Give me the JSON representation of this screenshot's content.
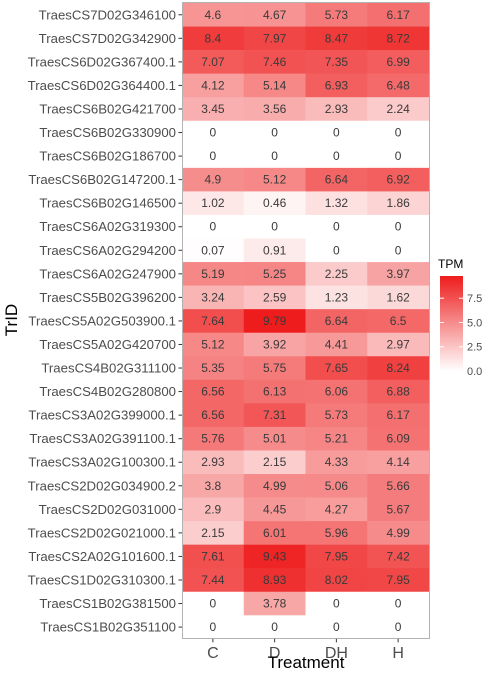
{
  "chart_data": {
    "type": "heatmap",
    "xlabel": "Treatment",
    "ylabel": "TrID",
    "x": [
      "C",
      "D",
      "DH",
      "H"
    ],
    "y": [
      "TraesCS7D02G346100",
      "TraesCS7D02G342900",
      "TraesCS6D02G367400.1",
      "TraesCS6D02G364400.1",
      "TraesCS6B02G421700",
      "TraesCS6B02G330900",
      "TraesCS6B02G186700",
      "TraesCS6B02G147200.1",
      "TraesCS6B02G146500",
      "TraesCS6A02G319300",
      "TraesCS6A02G294200",
      "TraesCS6A02G247900",
      "TraesCS5B02G396200",
      "TraesCS5A02G503900.1",
      "TraesCS5A02G420700",
      "TraesCS4B02G311100",
      "TraesCS4B02G280800",
      "TraesCS3A02G399000.1",
      "TraesCS3A02G391100.1",
      "TraesCS3A02G100300.1",
      "TraesCS2D02G034900.2",
      "TraesCS2D02G031000",
      "TraesCS2D02G021000.1",
      "TraesCS2A02G101600.1",
      "TraesCS1D02G310300.1",
      "TraesCS1B02G381500",
      "TraesCS1B02G351100"
    ],
    "values": [
      [
        4.6,
        4.67,
        5.73,
        6.17
      ],
      [
        8.4,
        7.97,
        8.47,
        8.72
      ],
      [
        7.07,
        7.46,
        7.35,
        6.99
      ],
      [
        4.12,
        5.14,
        6.93,
        6.48
      ],
      [
        3.45,
        3.56,
        2.93,
        2.24
      ],
      [
        0,
        0,
        0,
        0
      ],
      [
        0,
        0,
        0,
        0
      ],
      [
        4.9,
        5.12,
        6.64,
        6.92
      ],
      [
        1.02,
        0.46,
        1.32,
        1.86
      ],
      [
        0,
        0,
        0,
        0
      ],
      [
        0.07,
        0.91,
        0,
        0
      ],
      [
        5.19,
        5.25,
        2.25,
        3.97
      ],
      [
        3.24,
        2.59,
        1.23,
        1.62
      ],
      [
        7.64,
        9.79,
        6.64,
        6.5
      ],
      [
        5.12,
        3.92,
        4.41,
        2.97
      ],
      [
        5.35,
        5.75,
        7.65,
        8.24
      ],
      [
        6.56,
        6.13,
        6.06,
        6.88
      ],
      [
        6.56,
        7.31,
        5.73,
        6.17
      ],
      [
        5.76,
        5.01,
        5.21,
        6.09
      ],
      [
        2.93,
        2.15,
        4.33,
        4.14
      ],
      [
        3.8,
        4.99,
        5.06,
        5.66
      ],
      [
        2.9,
        4.45,
        4.27,
        5.67
      ],
      [
        2.15,
        6.01,
        5.96,
        4.99
      ],
      [
        7.61,
        9.43,
        7.95,
        7.42
      ],
      [
        7.44,
        8.93,
        8.02,
        7.95
      ],
      [
        0,
        3.78,
        0,
        0
      ],
      [
        0,
        0,
        0,
        0
      ]
    ],
    "cell_labels": [
      [
        "4.6",
        "4.67",
        "5.73",
        "6.17"
      ],
      [
        "8.4",
        "7.97",
        "8.47",
        "8.72"
      ],
      [
        "7.07",
        "7.46",
        "7.35",
        "6.99"
      ],
      [
        "4.12",
        "5.14",
        "6.93",
        "6.48"
      ],
      [
        "3.45",
        "3.56",
        "2.93",
        "2.24"
      ],
      [
        "0",
        "0",
        "0",
        "0"
      ],
      [
        "0",
        "0",
        "0",
        "0"
      ],
      [
        "4.9",
        "5.12",
        "6.64",
        "6.92"
      ],
      [
        "1.02",
        "0.46",
        "1.32",
        "1.86"
      ],
      [
        "0",
        "0",
        "0",
        "0"
      ],
      [
        "0.07",
        "0.91",
        "0",
        "0"
      ],
      [
        "5.19",
        "5.25",
        "2.25",
        "3.97"
      ],
      [
        "3.24",
        "2.59",
        "1.23",
        "1.62"
      ],
      [
        "7.64",
        "9.79",
        "6.64",
        "6.5"
      ],
      [
        "5.12",
        "3.92",
        "4.41",
        "2.97"
      ],
      [
        "5.35",
        "5.75",
        "7.65",
        "8.24"
      ],
      [
        "6.56",
        "6.13",
        "6.06",
        "6.88"
      ],
      [
        "6.56",
        "7.31",
        "5.73",
        "6.17"
      ],
      [
        "5.76",
        "5.01",
        "5.21",
        "6.09"
      ],
      [
        "2.93",
        "2.15",
        "4.33",
        "4.14"
      ],
      [
        "3.8",
        "4.99",
        "5.06",
        "5.66"
      ],
      [
        "2.9",
        "4.45",
        "4.27",
        "5.67"
      ],
      [
        "2.15",
        "6.01",
        "5.96",
        "4.99"
      ],
      [
        "7.61",
        "9.43",
        "7.95",
        "7.42"
      ],
      [
        "7.44",
        "8.93",
        "8.02",
        "7.95"
      ],
      [
        "0",
        "3.78",
        "0",
        "0"
      ],
      [
        "0",
        "0",
        "0",
        "0"
      ]
    ],
    "colorbar": {
      "title": "TPM",
      "ticks": [
        0,
        2.5,
        5,
        7.5
      ],
      "tick_labels": [
        "0.0",
        "2.5",
        "5.0",
        "7.5"
      ],
      "range": [
        0,
        9.79
      ],
      "low_color": "#ffffff",
      "high_color": "#ee1c1c"
    },
    "legend_position": "right",
    "grid": false,
    "panel_border_color": "#b3b3b3"
  }
}
